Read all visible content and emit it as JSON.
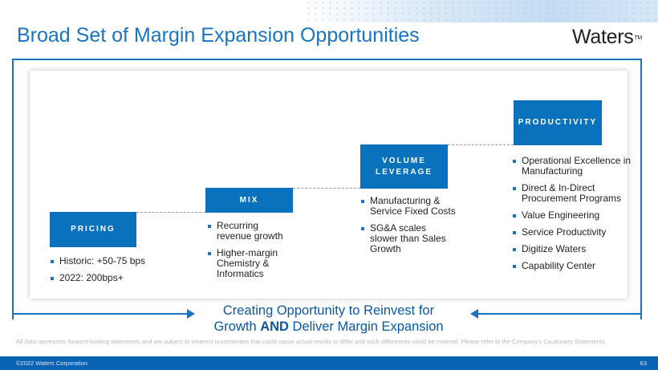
{
  "slide": {
    "title": "Broad Set of Margin Expansion Opportunities",
    "logo_text": "Waters",
    "logo_tm": "TM"
  },
  "steps": [
    {
      "label": "PRICING",
      "bullets": [
        "Historic: +50-75 bps",
        "2022: 200bps+"
      ]
    },
    {
      "label": "MIX",
      "bullets": [
        "Recurring revenue growth",
        "Higher-margin Chemistry & Informatics"
      ]
    },
    {
      "label_line1": "VOLUME",
      "label_line2": "LEVERAGE",
      "bullets": [
        "Manufacturing & Service Fixed Costs",
        "SG&A scales slower than Sales Growth"
      ]
    },
    {
      "label": "PRODUCTIVITY",
      "bullets": [
        "Operational Excellence in Manufacturing",
        "Direct & In-Direct Procurement Programs",
        "Value Engineering",
        "Service Productivity",
        "Digitize Waters",
        "Capability Center"
      ]
    }
  ],
  "bottom": {
    "line1": "Creating Opportunity to Reinvest for",
    "line2_pre": "Growth ",
    "line2_bold": "AND",
    "line2_post": " Deliver Margin Expansion"
  },
  "disclaimer": "All data represents forward-looking statements and are subject to inherent uncertainties that could cause actual results to differ and such differences could be material. Please refer to the Company's Cautionary Statements.",
  "footer": {
    "copyright": "©2022 Waters Corporation",
    "page_number": "63"
  },
  "colors": {
    "title_blue": "#1a74c4",
    "step_blue": "#0a72bc",
    "footer_blue": "#0a63b4"
  }
}
